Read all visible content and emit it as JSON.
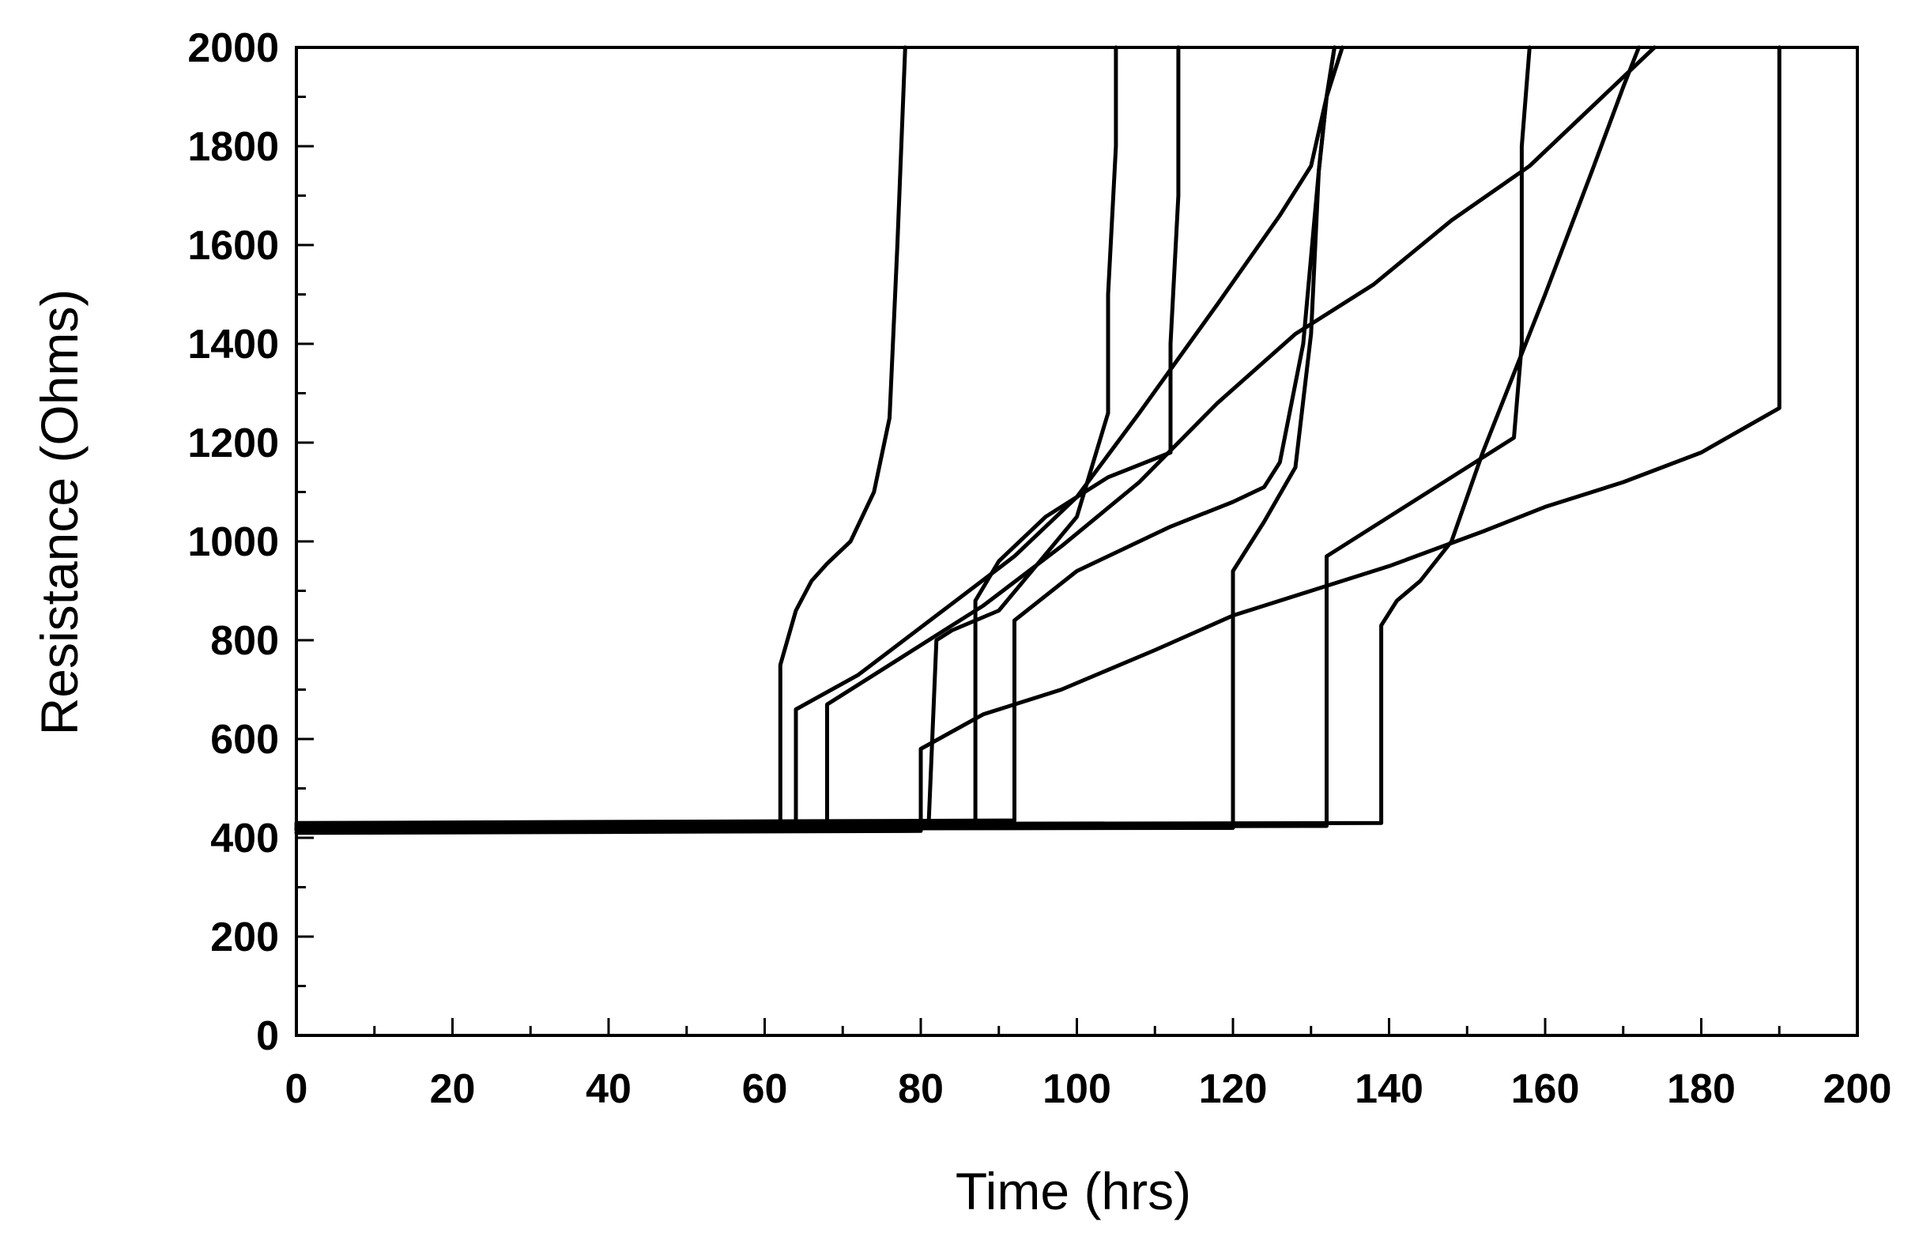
{
  "chart_data": {
    "type": "line",
    "xlabel": "Time (hrs)",
    "ylabel": "Resistance (Ohms)",
    "xlim": [
      0,
      200
    ],
    "ylim": [
      0,
      2000
    ],
    "x_ticks": [
      0,
      20,
      40,
      60,
      80,
      100,
      120,
      140,
      160,
      180,
      200
    ],
    "y_ticks": [
      0,
      200,
      400,
      600,
      800,
      1000,
      1200,
      1400,
      1600,
      1800,
      2000
    ],
    "grid": false,
    "legend": "none",
    "line_color": "#000000",
    "series": [
      {
        "x": [
          0,
          62,
          62,
          64,
          66,
          68,
          71,
          74,
          76,
          77,
          78
        ],
        "y": [
          415,
          420,
          750,
          860,
          920,
          955,
          1000,
          1100,
          1250,
          1600,
          2000
        ]
      },
      {
        "x": [
          0,
          64,
          64,
          72,
          82,
          92,
          100,
          108,
          118,
          126,
          130,
          132,
          134
        ],
        "y": [
          418,
          422,
          660,
          730,
          850,
          970,
          1090,
          1260,
          1480,
          1660,
          1760,
          1900,
          2000
        ]
      },
      {
        "x": [
          0,
          68,
          68,
          78,
          88,
          98,
          108,
          118,
          128,
          138,
          148,
          158,
          166,
          174
        ],
        "y": [
          420,
          424,
          670,
          770,
          870,
          990,
          1120,
          1280,
          1420,
          1520,
          1650,
          1760,
          1880,
          2000
        ]
      },
      {
        "x": [
          0,
          80,
          80,
          88,
          98,
          110,
          120,
          130,
          140,
          152,
          160,
          170,
          180,
          190,
          190
        ],
        "y": [
          410,
          414,
          580,
          650,
          700,
          780,
          850,
          900,
          950,
          1020,
          1070,
          1120,
          1180,
          1270,
          2000
        ]
      },
      {
        "x": [
          0,
          81,
          82,
          84,
          90,
          100,
          104,
          104,
          105,
          105
        ],
        "y": [
          420,
          425,
          800,
          820,
          860,
          1050,
          1260,
          1500,
          1800,
          2000
        ]
      },
      {
        "x": [
          0,
          87,
          87,
          90,
          96,
          104,
          112,
          112,
          113,
          113
        ],
        "y": [
          424,
          428,
          880,
          960,
          1050,
          1130,
          1180,
          1400,
          1700,
          2000
        ]
      },
      {
        "x": [
          0,
          92,
          92,
          100,
          112,
          120,
          124,
          126,
          129,
          131,
          132,
          133
        ],
        "y": [
          430,
          435,
          840,
          940,
          1030,
          1080,
          1110,
          1160,
          1400,
          1750,
          1900,
          2000
        ]
      },
      {
        "x": [
          0,
          120,
          120,
          124,
          128,
          130,
          131,
          132,
          133
        ],
        "y": [
          418,
          420,
          940,
          1040,
          1150,
          1420,
          1750,
          1900,
          2000
        ]
      },
      {
        "x": [
          0,
          132,
          132,
          140,
          148,
          156,
          157,
          157,
          158
        ],
        "y": [
          420,
          424,
          970,
          1050,
          1130,
          1210,
          1400,
          1800,
          2000
        ]
      },
      {
        "x": [
          0,
          139,
          139,
          141,
          144,
          148,
          152,
          160,
          166,
          170,
          172
        ],
        "y": [
          426,
          430,
          830,
          880,
          920,
          1000,
          1180,
          1500,
          1750,
          1920,
          2000
        ]
      }
    ]
  }
}
